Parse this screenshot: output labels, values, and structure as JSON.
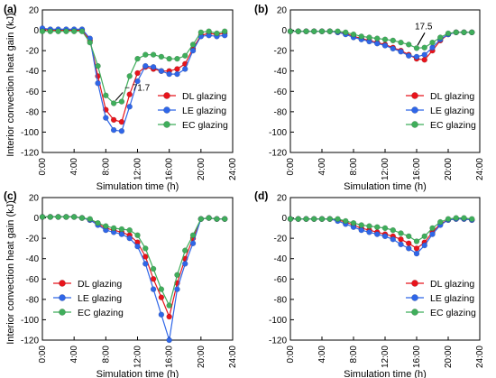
{
  "colors": {
    "DL": "#e8141c",
    "LE": "#2f66e8",
    "EC": "#3fae5b"
  },
  "chart_data": [
    {
      "panel_label": "(a)",
      "type": "line",
      "xlabel": "Simulation time (h)",
      "ylabel": "Interior convection heat gain (kJ)",
      "ylim": [
        -120,
        20
      ],
      "yticks": [
        20,
        0,
        -20,
        -40,
        -60,
        -80,
        -100,
        -120
      ],
      "xlim": [
        0,
        24
      ],
      "xticks": [
        "0:00",
        "4:00",
        "8:00",
        "12:00",
        "16:00",
        "20:00",
        "24:00"
      ],
      "x": [
        0,
        1,
        2,
        3,
        4,
        5,
        6,
        7,
        8,
        9,
        10,
        11,
        12,
        13,
        14,
        15,
        16,
        17,
        18,
        19,
        20,
        21,
        22,
        23
      ],
      "series": [
        {
          "name": "DL glazing",
          "values": [
            1,
            0,
            0,
            0,
            0,
            0,
            -10,
            -45,
            -78,
            -88,
            -90,
            -63,
            -42,
            -36,
            -38,
            -40,
            -40,
            -38,
            -33,
            -18,
            -5,
            -3,
            -4,
            -3
          ]
        },
        {
          "name": "LE glazing",
          "values": [
            2,
            1,
            1,
            1,
            1,
            1,
            -8,
            -52,
            -86,
            -98,
            -99,
            -75,
            -50,
            -35,
            -36,
            -40,
            -43,
            -43,
            -38,
            -20,
            -6,
            -5,
            -6,
            -5
          ]
        },
        {
          "name": "EC glazing",
          "values": [
            -1,
            -1,
            -1,
            -1,
            -1,
            -1,
            -12,
            -35,
            -64,
            -71.7,
            -70,
            -45,
            -28,
            -24,
            -24,
            -26,
            -28,
            -28,
            -25,
            -14,
            -2,
            -1,
            -3,
            -1
          ]
        }
      ],
      "annotation": {
        "text": "− 71.7",
        "x": 9,
        "y": -71.7
      },
      "legend_position": "right"
    },
    {
      "panel_label": "(b)",
      "type": "line",
      "xlabel": "Simulation time (h)",
      "ylabel": "",
      "ylim": [
        -120,
        20
      ],
      "yticks": [
        20,
        0,
        -20,
        -40,
        -60,
        -80,
        -100,
        -120
      ],
      "xlim": [
        0,
        24
      ],
      "xticks": [
        "0:00",
        "4:00",
        "8:00",
        "12:00",
        "16:00",
        "20:00",
        "24:00"
      ],
      "x": [
        0,
        1,
        2,
        3,
        4,
        5,
        6,
        7,
        8,
        9,
        10,
        11,
        12,
        13,
        14,
        15,
        16,
        17,
        18,
        19,
        20,
        21,
        22,
        23
      ],
      "series": [
        {
          "name": "DL glazing",
          "values": [
            -1,
            -1,
            -1,
            -1,
            -1,
            -1,
            -2,
            -3,
            -6,
            -8,
            -10,
            -12,
            -14,
            -17,
            -20,
            -24,
            -28,
            -29,
            -20,
            -10,
            -4,
            -2,
            -2,
            -2
          ]
        },
        {
          "name": "LE glazing",
          "values": [
            -1,
            -1,
            -1,
            -1,
            -1,
            -1,
            -2,
            -4,
            -7,
            -9,
            -11,
            -13,
            -15,
            -18,
            -21,
            -25,
            -26,
            -24,
            -17,
            -9,
            -4,
            -2,
            -2,
            -2
          ]
        },
        {
          "name": "EC glazing",
          "values": [
            -1,
            -1,
            -1,
            -1,
            -1,
            -1,
            -1,
            -2,
            -4,
            -6,
            -7,
            -8,
            -9,
            -10,
            -12,
            -14,
            -17.5,
            -17,
            -12,
            -7,
            -3,
            -2,
            -2,
            -2
          ]
        }
      ],
      "annotation": {
        "text": "17.5",
        "x": 16,
        "y": -17.5
      },
      "legend_position": "right"
    },
    {
      "panel_label": "(c)",
      "type": "line",
      "xlabel": "Simulation time (h)",
      "ylabel": "Interior convection heat gain (kJ)",
      "ylim": [
        -120,
        20
      ],
      "yticks": [
        20,
        0,
        -20,
        -40,
        -60,
        -80,
        -100,
        -120
      ],
      "xlim": [
        0,
        24
      ],
      "xticks": [
        "0:00",
        "4:00",
        "8:00",
        "12:00",
        "16:00",
        "20:00",
        "24:00"
      ],
      "x": [
        0,
        1,
        2,
        3,
        4,
        5,
        6,
        7,
        8,
        9,
        10,
        11,
        12,
        13,
        14,
        15,
        16,
        17,
        18,
        19,
        20,
        21,
        22,
        23
      ],
      "series": [
        {
          "name": "DL glazing",
          "values": [
            1,
            1,
            1,
            1,
            1,
            0,
            -2,
            -6,
            -10,
            -12,
            -14,
            -17,
            -24,
            -38,
            -60,
            -78,
            -97,
            -64,
            -40,
            -20,
            -1,
            0,
            -1,
            -1
          ]
        },
        {
          "name": "LE glazing",
          "values": [
            1,
            1,
            1,
            1,
            1,
            0,
            -2,
            -7,
            -12,
            -14,
            -16,
            -20,
            -28,
            -45,
            -70,
            -95,
            -120,
            -70,
            -45,
            -25,
            -1,
            0,
            -1,
            -1
          ]
        },
        {
          "name": "EC glazing",
          "values": [
            1,
            1,
            1,
            1,
            1,
            0,
            -1,
            -5,
            -8,
            -10,
            -11,
            -12,
            -17,
            -30,
            -50,
            -70,
            -86,
            -56,
            -32,
            -17,
            -1,
            0,
            -1,
            -1
          ]
        }
      ],
      "legend_position": "left"
    },
    {
      "panel_label": "(d)",
      "type": "line",
      "xlabel": "Simulation time (h)",
      "ylabel": "",
      "ylim": [
        -120,
        20
      ],
      "yticks": [
        20,
        0,
        -20,
        -40,
        -60,
        -80,
        -100,
        -120
      ],
      "xlim": [
        0,
        24
      ],
      "xticks": [
        "0:00",
        "4:00",
        "8:00",
        "12:00",
        "16:00",
        "20:00",
        "24:00"
      ],
      "x": [
        0,
        1,
        2,
        3,
        4,
        5,
        6,
        7,
        8,
        9,
        10,
        11,
        12,
        13,
        14,
        15,
        16,
        17,
        18,
        19,
        20,
        21,
        22,
        23
      ],
      "series": [
        {
          "name": "DL glazing",
          "values": [
            -1,
            -1,
            -1,
            -1,
            -1,
            -1,
            -2,
            -4,
            -7,
            -10,
            -12,
            -14,
            -16,
            -18,
            -21,
            -25,
            -30,
            -24,
            -14,
            -6,
            -2,
            -1,
            -1,
            -2
          ]
        },
        {
          "name": "LE glazing",
          "values": [
            -1,
            -1,
            -1,
            -1,
            -1,
            -1,
            -3,
            -6,
            -9,
            -12,
            -14,
            -16,
            -18,
            -21,
            -26,
            -30,
            -35,
            -27,
            -16,
            -7,
            -2,
            -1,
            -1,
            -2
          ]
        },
        {
          "name": "EC glazing",
          "values": [
            -1,
            -1,
            -1,
            -1,
            -1,
            -1,
            -1,
            -3,
            -5,
            -7,
            -8,
            -9,
            -10,
            -12,
            -15,
            -18,
            -23,
            -18,
            -10,
            -4,
            -1,
            0,
            0,
            -1
          ]
        }
      ],
      "legend_position": "right"
    }
  ]
}
